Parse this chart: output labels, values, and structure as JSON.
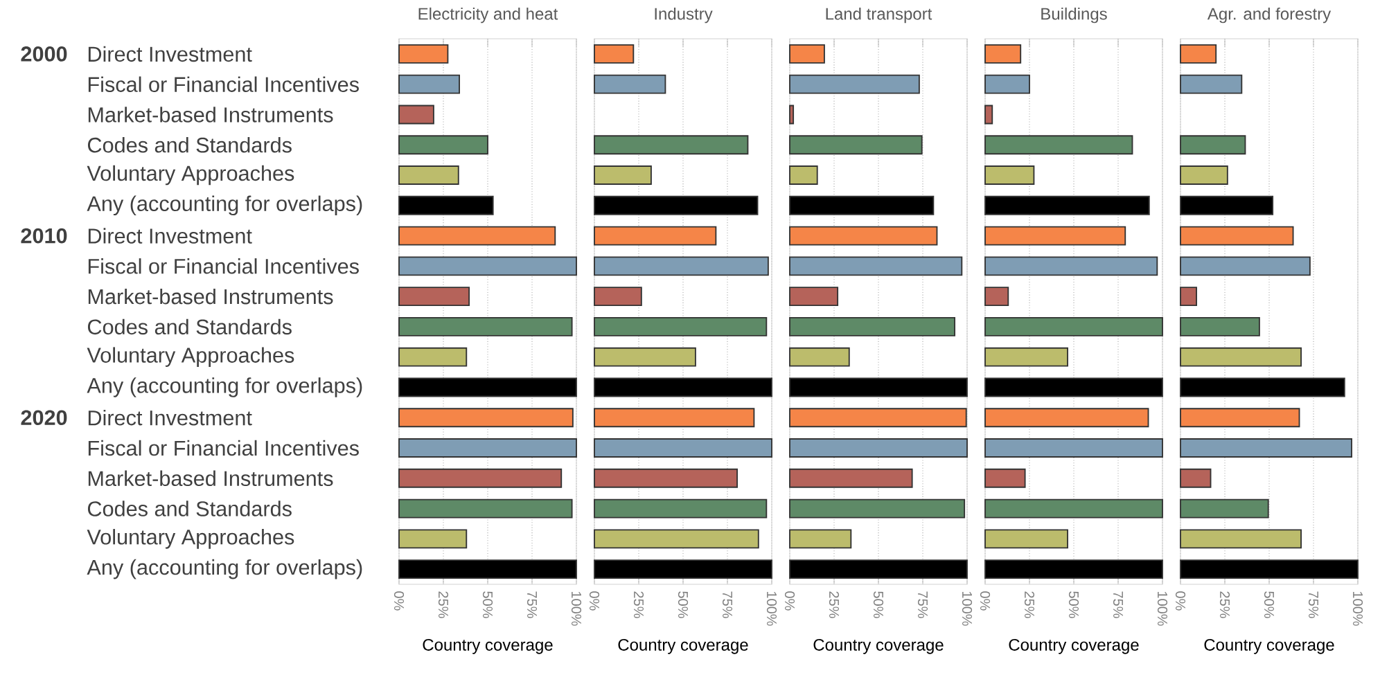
{
  "chart_data": [
    {
      "type": "bar",
      "orientation": "horizontal",
      "title": "Electricity and heat",
      "xlabel": "Country coverage",
      "grid": "x",
      "categories": [
        "Direct Investment",
        "Fiscal or Financial Incentives",
        "Market-based Instruments",
        "Codes and Standards",
        "Voluntary Approaches",
        "Any (accounting for overlaps)",
        "Direct Investment",
        "Fiscal or Financial Incentives",
        "Market-based Instruments",
        "Codes and Standards",
        "Voluntary Approaches",
        "Any (accounting for overlaps)",
        "Direct Investment",
        "Fiscal or Financial Incentives",
        "Market-based Instruments",
        "Codes and Standards",
        "Voluntary Approaches",
        "Any (accounting for overlaps)"
      ],
      "annotations": [
        "2000",
        "2010",
        "2020"
      ],
      "values": [
        27.5,
        34,
        19.5,
        50,
        33.5,
        53,
        88,
        100,
        39.5,
        97.5,
        38,
        100,
        98,
        100,
        91.5,
        97.5,
        38,
        100
      ],
      "colors": [
        "#f58548",
        "#7f9db4",
        "#b5635a",
        "#5e8a67",
        "#bcbc6c",
        "#000000",
        "#f58548",
        "#7f9db4",
        "#b5635a",
        "#5e8a67",
        "#bcbc6c",
        "#000000",
        "#f58548",
        "#7f9db4",
        "#b5635a",
        "#5e8a67",
        "#bcbc6c",
        "#000000"
      ],
      "xlim": [
        0,
        100
      ],
      "xticks": [
        {
          "value": 0,
          "label": "0%"
        },
        {
          "value": 25,
          "label": "25%"
        },
        {
          "value": 50,
          "label": "50%"
        },
        {
          "value": 75,
          "label": "75%"
        },
        {
          "value": 100,
          "label": "100%"
        }
      ]
    },
    {
      "type": "bar",
      "orientation": "horizontal",
      "title": "Industry",
      "xlabel": "Country coverage",
      "grid": "x",
      "tick_labels": "x",
      "categories": [
        null,
        null,
        null,
        null,
        null,
        null,
        null,
        null,
        null,
        null,
        null,
        null,
        null,
        null,
        null,
        null,
        null,
        null
      ],
      "values": [
        22,
        40,
        null,
        86.5,
        32,
        92,
        68.5,
        98,
        26.5,
        97,
        57,
        100,
        90,
        100,
        80.5,
        97,
        92.5,
        100
      ],
      "colors": [
        "#f58548",
        "#7f9db4",
        "#b5635a",
        "#5e8a67",
        "#bcbc6c",
        "#000000",
        "#f58548",
        "#7f9db4",
        "#b5635a",
        "#5e8a67",
        "#bcbc6c",
        "#000000",
        "#f58548",
        "#7f9db4",
        "#b5635a",
        "#5e8a67",
        "#bcbc6c",
        "#000000"
      ],
      "xlim": [
        0,
        100
      ],
      "xticks": [
        {
          "value": 0,
          "label": "0%"
        },
        {
          "value": 25,
          "label": "25%"
        },
        {
          "value": 50,
          "label": "50%"
        },
        {
          "value": 75,
          "label": "75%"
        },
        {
          "value": 100,
          "label": "100%"
        }
      ]
    },
    {
      "type": "bar",
      "orientation": "horizontal",
      "title": "Land transport",
      "xlabel": "Country coverage",
      "grid": "x",
      "tick_labels": "x",
      "categories": [
        null,
        null,
        null,
        null,
        null,
        null,
        null,
        null,
        null,
        null,
        null,
        null,
        null,
        null,
        null,
        null,
        null,
        null
      ],
      "values": [
        19.5,
        73,
        2,
        74.5,
        15.5,
        81,
        83,
        97,
        27,
        93,
        33.5,
        100,
        99.5,
        100,
        69,
        98.5,
        34.5,
        100
      ],
      "colors": [
        "#f58548",
        "#7f9db4",
        "#b5635a",
        "#5e8a67",
        "#bcbc6c",
        "#000000",
        "#f58548",
        "#7f9db4",
        "#b5635a",
        "#5e8a67",
        "#bcbc6c",
        "#000000",
        "#f58548",
        "#7f9db4",
        "#b5635a",
        "#5e8a67",
        "#bcbc6c",
        "#000000"
      ],
      "xlim": [
        0,
        100
      ],
      "xticks": [
        {
          "value": 0,
          "label": "0%"
        },
        {
          "value": 25,
          "label": "25%"
        },
        {
          "value": 50,
          "label": "50%"
        },
        {
          "value": 75,
          "label": "75%"
        },
        {
          "value": 100,
          "label": "100%"
        }
      ]
    },
    {
      "type": "bar",
      "orientation": "horizontal",
      "title": "Buildings",
      "xlabel": "Country coverage",
      "grid": "x",
      "tick_labels": "x",
      "categories": [
        null,
        null,
        null,
        null,
        null,
        null,
        null,
        null,
        null,
        null,
        null,
        null,
        null,
        null,
        null,
        null,
        null,
        null
      ],
      "values": [
        20,
        25,
        4,
        83,
        27.5,
        92.5,
        79,
        97,
        13,
        100,
        46.5,
        100,
        92,
        100,
        22.5,
        100,
        46.5,
        100
      ],
      "colors": [
        "#f58548",
        "#7f9db4",
        "#b5635a",
        "#5e8a67",
        "#bcbc6c",
        "#000000",
        "#f58548",
        "#7f9db4",
        "#b5635a",
        "#5e8a67",
        "#bcbc6c",
        "#000000",
        "#f58548",
        "#7f9db4",
        "#b5635a",
        "#5e8a67",
        "#bcbc6c",
        "#000000"
      ],
      "xlim": [
        0,
        100
      ],
      "xticks": [
        {
          "value": 0,
          "label": "0%"
        },
        {
          "value": 25,
          "label": "25%"
        },
        {
          "value": 50,
          "label": "50%"
        },
        {
          "value": 75,
          "label": "75%"
        },
        {
          "value": 100,
          "label": "100%"
        }
      ]
    },
    {
      "type": "bar",
      "orientation": "horizontal",
      "title": "Agr. and forestry",
      "xlabel": "Country coverage",
      "grid": "x",
      "tick_labels": "x",
      "categories": [
        null,
        null,
        null,
        null,
        null,
        null,
        null,
        null,
        null,
        null,
        null,
        null,
        null,
        null,
        null,
        null,
        null,
        null
      ],
      "values": [
        20,
        34.5,
        null,
        36.5,
        26.5,
        52,
        63.5,
        73,
        9,
        44.5,
        68,
        92.5,
        67,
        96.5,
        17,
        49.5,
        68,
        100
      ],
      "colors": [
        "#f58548",
        "#7f9db4",
        "#b5635a",
        "#5e8a67",
        "#bcbc6c",
        "#000000",
        "#f58548",
        "#7f9db4",
        "#b5635a",
        "#5e8a67",
        "#bcbc6c",
        "#000000",
        "#f58548",
        "#7f9db4",
        "#b5635a",
        "#5e8a67",
        "#bcbc6c",
        "#000000"
      ],
      "xlim": [
        0,
        100
      ],
      "xticks": [
        {
          "value": 0,
          "label": "0%"
        },
        {
          "value": 25,
          "label": "25%"
        },
        {
          "value": 50,
          "label": "50%"
        },
        {
          "value": 75,
          "label": "75%"
        },
        {
          "value": 100,
          "label": "100%"
        }
      ]
    }
  ]
}
